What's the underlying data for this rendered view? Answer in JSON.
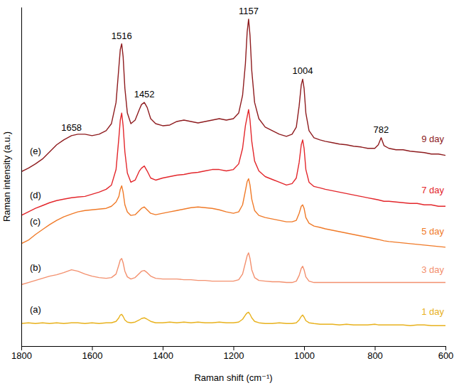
{
  "chart_data": {
    "type": "line",
    "xlabel": "Raman shift (cm⁻¹)",
    "ylabel": "Raman intensity (a.u.)",
    "xlim": [
      1800,
      600
    ],
    "xticks": [
      1800,
      1600,
      1400,
      1200,
      1000,
      800,
      600
    ],
    "ylim": [
      0,
      480
    ],
    "grid": false,
    "tick_labels": "x",
    "peak_labels": [
      1658,
      1516,
      1452,
      1157,
      1004,
      782
    ],
    "x": [
      1800,
      1780,
      1760,
      1740,
      1720,
      1700,
      1680,
      1658,
      1640,
      1620,
      1600,
      1580,
      1560,
      1545,
      1532,
      1524,
      1520,
      1516,
      1512,
      1507,
      1500,
      1490,
      1478,
      1466,
      1460,
      1452,
      1444,
      1434,
      1420,
      1400,
      1380,
      1360,
      1340,
      1320,
      1300,
      1280,
      1260,
      1240,
      1220,
      1200,
      1185,
      1174,
      1166,
      1161,
      1157,
      1153,
      1148,
      1140,
      1128,
      1110,
      1090,
      1070,
      1050,
      1034,
      1022,
      1014,
      1008,
      1004,
      1000,
      995,
      986,
      972,
      955,
      940,
      920,
      900,
      880,
      860,
      840,
      820,
      800,
      790,
      782,
      774,
      760,
      740,
      720,
      700,
      680,
      660,
      640,
      620,
      600
    ],
    "series": [
      {
        "name": "1 day",
        "label": "(a)",
        "color": "#e8b11c",
        "values": [
          32,
          33,
          32,
          33,
          32,
          33,
          32,
          33,
          33,
          32,
          33,
          32,
          33,
          33,
          35,
          40,
          44,
          45,
          42,
          37,
          34,
          33,
          34,
          37,
          39,
          40,
          38,
          35,
          33,
          33,
          34,
          33,
          34,
          33,
          34,
          33,
          33,
          34,
          33,
          33,
          34,
          38,
          44,
          47,
          48,
          45,
          40,
          35,
          33,
          32,
          32,
          33,
          32,
          32,
          33,
          37,
          42,
          44,
          41,
          36,
          33,
          32,
          31,
          31,
          31,
          30,
          31,
          30,
          30,
          30,
          31,
          30,
          30,
          30,
          30,
          30,
          30,
          29,
          30,
          30,
          29,
          29,
          29
        ]
      },
      {
        "name": "3 day",
        "label": "(b)",
        "color": "#f3906e",
        "values": [
          87,
          90,
          93,
          96,
          99,
          101,
          104,
          108,
          106,
          102,
          99,
          97,
          96,
          97,
          102,
          115,
          122,
          124,
          118,
          106,
          98,
          95,
          97,
          103,
          106,
          107,
          104,
          99,
          96,
          95,
          95,
          95,
          94,
          94,
          93,
          93,
          92,
          92,
          92,
          92,
          94,
          102,
          118,
          128,
          132,
          124,
          108,
          97,
          93,
          92,
          91,
          91,
          90,
          90,
          92,
          100,
          110,
          113,
          108,
          98,
          92,
          90,
          90,
          90,
          90,
          90,
          90,
          90,
          90,
          90,
          90,
          90,
          90,
          90,
          90,
          90,
          90,
          90,
          90,
          90,
          90,
          90,
          90
        ]
      },
      {
        "name": "5 day",
        "label": "(c)",
        "color": "#f07a28",
        "values": [
          145,
          150,
          158,
          165,
          172,
          178,
          183,
          187,
          190,
          192,
          193,
          194,
          195,
          198,
          204,
          212,
          222,
          227,
          218,
          200,
          190,
          185,
          186,
          192,
          195,
          197,
          193,
          188,
          186,
          188,
          190,
          192,
          194,
          196,
          197,
          196,
          195,
          193,
          190,
          188,
          190,
          200,
          220,
          233,
          237,
          228,
          208,
          192,
          185,
          182,
          180,
          178,
          176,
          176,
          178,
          188,
          198,
          200,
          195,
          182,
          174,
          170,
          168,
          166,
          164,
          162,
          160,
          158,
          156,
          154,
          152,
          151,
          150,
          149,
          148,
          147,
          146,
          145,
          144,
          143,
          142,
          141,
          140
        ]
      },
      {
        "name": "7 day",
        "label": "(d)",
        "color": "#e3262b",
        "values": [
          185,
          190,
          195,
          199,
          203,
          206,
          208,
          210,
          211,
          212,
          215,
          218,
          222,
          228,
          250,
          295,
          320,
          330,
          312,
          275,
          245,
          232,
          235,
          248,
          252,
          255,
          248,
          238,
          235,
          238,
          240,
          242,
          243,
          245,
          246,
          248,
          250,
          250,
          248,
          250,
          258,
          280,
          312,
          325,
          335,
          320,
          290,
          262,
          248,
          240,
          236,
          232,
          228,
          230,
          238,
          260,
          285,
          292,
          280,
          250,
          232,
          226,
          224,
          222,
          220,
          218,
          216,
          214,
          212,
          210,
          208,
          207,
          206,
          205,
          205,
          204,
          203,
          202,
          202,
          200,
          200,
          198,
          198
        ]
      },
      {
        "name": "9 day",
        "label": "(e)",
        "color": "#8e1b1e",
        "values": [
          247,
          252,
          258,
          265,
          275,
          285,
          292,
          298,
          300,
          300,
          298,
          300,
          305,
          315,
          345,
          395,
          420,
          428,
          410,
          365,
          330,
          315,
          320,
          335,
          342,
          345,
          338,
          322,
          315,
          312,
          313,
          318,
          320,
          318,
          316,
          318,
          320,
          322,
          320,
          322,
          330,
          355,
          400,
          445,
          463,
          440,
          390,
          345,
          322,
          310,
          305,
          300,
          297,
          300,
          310,
          340,
          370,
          378,
          365,
          330,
          305,
          295,
          292,
          290,
          288,
          286,
          285,
          283,
          282,
          280,
          280,
          285,
          295,
          284,
          280,
          278,
          278,
          276,
          275,
          274,
          272,
          272,
          270
        ]
      }
    ]
  }
}
